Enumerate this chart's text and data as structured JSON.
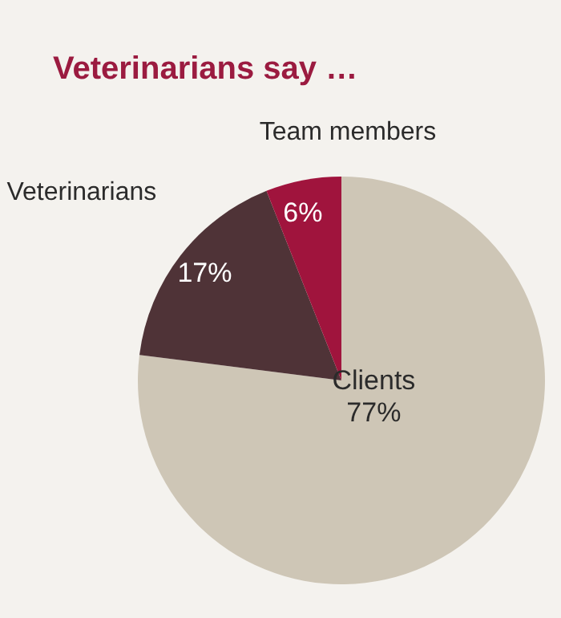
{
  "chart_data": {
    "type": "pie",
    "title": "Veterinarians say …",
    "categories": [
      "Clients",
      "Veterinarians",
      "Team members"
    ],
    "values": [
      77,
      17,
      6
    ],
    "value_labels": [
      "77%",
      "17%",
      "6%"
    ],
    "colors": [
      "#cec6b6",
      "#4f3337",
      "#a0143d"
    ]
  }
}
